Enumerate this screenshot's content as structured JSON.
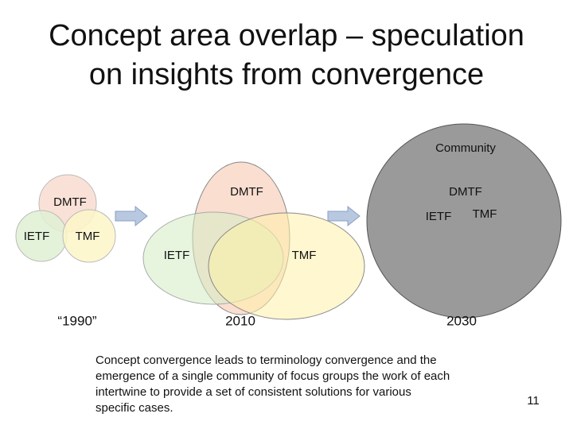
{
  "title": [
    "Concept area overlap – speculation",
    "on insights from convergence"
  ],
  "stages": [
    {
      "year": "“1990”",
      "labels": [
        "DMTF",
        "IETF",
        "TMF"
      ]
    },
    {
      "year": "2010",
      "labels": [
        "DMTF",
        "IETF",
        "TMF"
      ]
    },
    {
      "year": "2030",
      "community": "Community",
      "labels": [
        "DMTF",
        "IETF",
        "TMF"
      ]
    }
  ],
  "caption": [
    "Concept convergence leads to terminology convergence and the",
    "emergence of a single community of focus groups the work of each",
    "intertwine to provide a set of consistent solutions for various",
    "specific cases."
  ],
  "page_number": "11"
}
